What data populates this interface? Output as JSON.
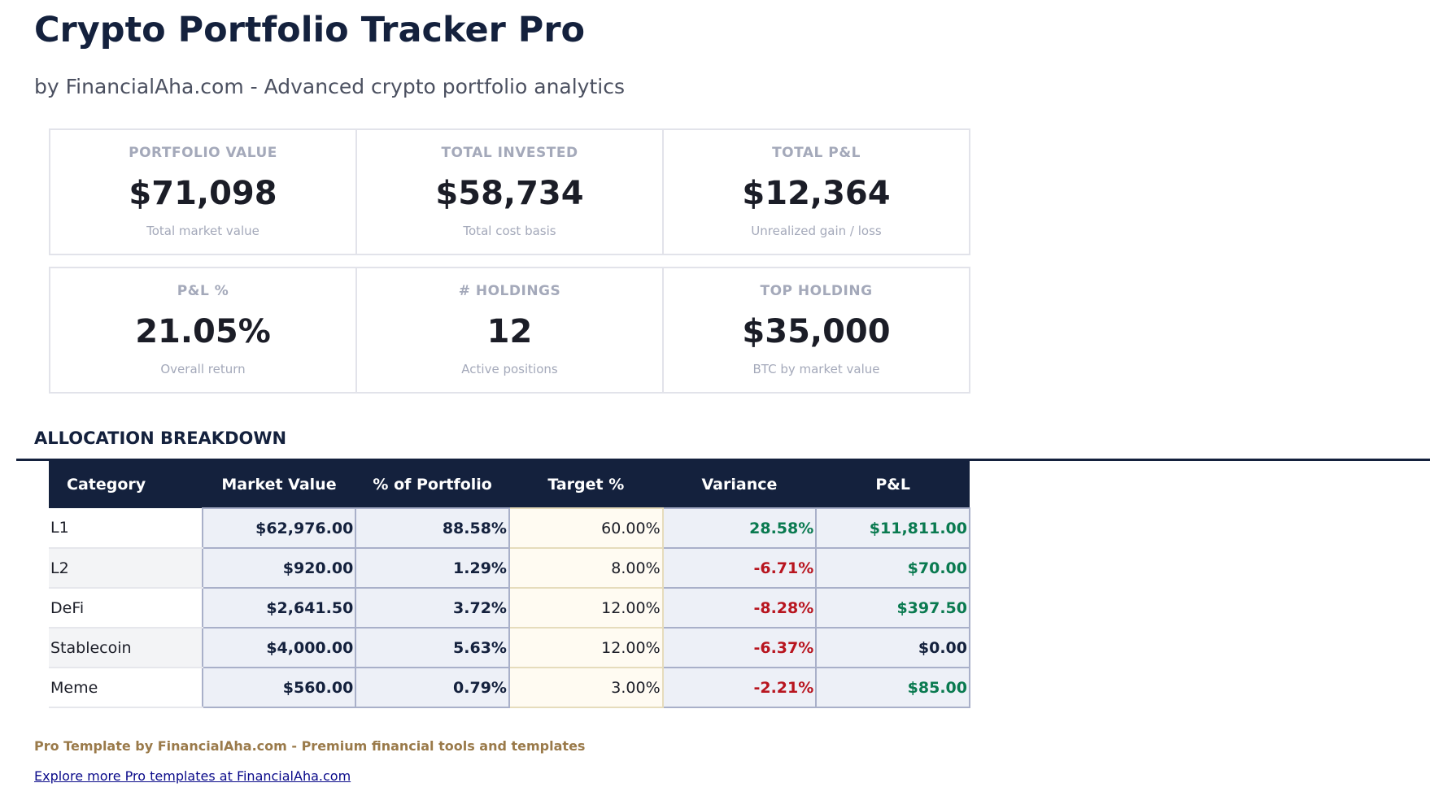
{
  "header": {
    "title": "Crypto Portfolio Tracker Pro",
    "subtitle": "by FinancialAha.com - Advanced crypto portfolio analytics"
  },
  "cards": [
    {
      "label": "PORTFOLIO VALUE",
      "value": "$71,098",
      "caption": "Total market value"
    },
    {
      "label": "TOTAL INVESTED",
      "value": "$58,734",
      "caption": "Total cost basis"
    },
    {
      "label": "TOTAL P&L",
      "value": "$12,364",
      "caption": "Unrealized gain / loss"
    },
    {
      "label": "P&L %",
      "value": "21.05%",
      "caption": "Overall return"
    },
    {
      "label": "# HOLDINGS",
      "value": "12",
      "caption": "Active positions"
    },
    {
      "label": "TOP HOLDING",
      "value": "$35,000",
      "caption": "BTC by market value"
    }
  ],
  "allocation": {
    "heading": "ALLOCATION BREAKDOWN",
    "columns": [
      "Category",
      "Market Value",
      "% of Portfolio",
      "Target %",
      "Variance",
      "P&L"
    ],
    "rows": [
      {
        "category": "L1",
        "market_value": "$62,976.00",
        "pct": "88.58%",
        "target": "60.00%",
        "variance": "28.58%",
        "pnl": "$11,811.00",
        "variance_sign": "pos",
        "pnl_sign": "pos"
      },
      {
        "category": "L2",
        "market_value": "$920.00",
        "pct": "1.29%",
        "target": "8.00%",
        "variance": "-6.71%",
        "pnl": "$70.00",
        "variance_sign": "neg",
        "pnl_sign": "pos"
      },
      {
        "category": "DeFi",
        "market_value": "$2,641.50",
        "pct": "3.72%",
        "target": "12.00%",
        "variance": "-8.28%",
        "pnl": "$397.50",
        "variance_sign": "neg",
        "pnl_sign": "pos"
      },
      {
        "category": "Stablecoin",
        "market_value": "$4,000.00",
        "pct": "5.63%",
        "target": "12.00%",
        "variance": "-6.37%",
        "pnl": "$0.00",
        "variance_sign": "neg",
        "pnl_sign": "zero"
      },
      {
        "category": "Meme",
        "market_value": "$560.00",
        "pct": "0.79%",
        "target": "3.00%",
        "variance": "-2.21%",
        "pnl": "$85.00",
        "variance_sign": "neg",
        "pnl_sign": "pos"
      }
    ]
  },
  "footer": {
    "note": "Pro Template by FinancialAha.com - Premium financial tools and templates",
    "link": "Explore more Pro templates at FinancialAha.com"
  },
  "colors": {
    "navy": "#14213d",
    "positive": "#0a7a50",
    "negative": "#b8151f",
    "gold": "#9a7a4a"
  }
}
